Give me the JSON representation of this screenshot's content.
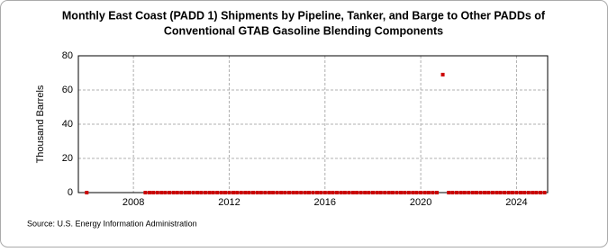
{
  "chart_data": {
    "type": "scatter",
    "title": [
      "Monthly East Coast (PADD 1) Shipments by Pipeline, Tanker, and Barge to Other PADDs of",
      "Conventional GTAB Gasoline Blending Components"
    ],
    "y_label": "Thousand Barrels",
    "source": "Source: U.S. Energy Information Administration",
    "xlim": [
      2005.7,
      2025.3
    ],
    "xticks": [
      2008,
      2012,
      2016,
      2020,
      2024
    ],
    "ylim": [
      0,
      80
    ],
    "yticks": [
      0,
      20,
      40,
      60,
      80
    ],
    "grid": true,
    "series": [
      {
        "color": "#cc0000",
        "x": [
          2006.05,
          2008.5,
          2008.67,
          2008.83,
          2009.0,
          2009.17,
          2009.33,
          2009.5,
          2009.67,
          2009.83,
          2010.0,
          2010.17,
          2010.33,
          2010.5,
          2010.67,
          2010.83,
          2011.0,
          2011.17,
          2011.33,
          2011.5,
          2011.67,
          2011.83,
          2012.0,
          2012.17,
          2012.33,
          2012.5,
          2012.67,
          2012.83,
          2013.0,
          2013.17,
          2013.33,
          2013.5,
          2013.67,
          2013.83,
          2014.0,
          2014.17,
          2014.33,
          2014.5,
          2014.67,
          2014.83,
          2015.0,
          2015.17,
          2015.33,
          2015.5,
          2015.67,
          2015.83,
          2016.0,
          2016.17,
          2016.33,
          2016.5,
          2016.67,
          2016.83,
          2017.0,
          2017.17,
          2017.33,
          2017.5,
          2017.67,
          2017.83,
          2018.0,
          2018.17,
          2018.33,
          2018.5,
          2018.67,
          2018.83,
          2019.0,
          2019.17,
          2019.33,
          2019.5,
          2019.67,
          2019.83,
          2020.0,
          2020.17,
          2020.33,
          2020.5,
          2020.67,
          2020.92,
          2021.17,
          2021.33,
          2021.5,
          2021.67,
          2021.83,
          2022.0,
          2022.17,
          2022.33,
          2022.5,
          2022.67,
          2022.83,
          2023.0,
          2023.17,
          2023.33,
          2023.5,
          2023.67,
          2023.83,
          2024.0,
          2024.17,
          2024.33,
          2024.5,
          2024.67,
          2024.83,
          2025.0,
          2025.17
        ],
        "values": [
          0,
          0,
          0,
          0,
          0,
          0,
          0,
          0,
          0,
          0,
          0,
          0,
          0,
          0,
          0,
          0,
          0,
          0,
          0,
          0,
          0,
          0,
          0,
          0,
          0,
          0,
          0,
          0,
          0,
          0,
          0,
          0,
          0,
          0,
          0,
          0,
          0,
          0,
          0,
          0,
          0,
          0,
          0,
          0,
          0,
          0,
          0,
          0,
          0,
          0,
          0,
          0,
          0,
          0,
          0,
          0,
          0,
          0,
          0,
          0,
          0,
          0,
          0,
          0,
          0,
          0,
          0,
          0,
          0,
          0,
          0,
          0,
          0,
          0,
          0,
          69,
          0,
          0,
          0,
          0,
          0,
          0,
          0,
          0,
          0,
          0,
          0,
          0,
          0,
          0,
          0,
          0,
          0,
          0,
          0,
          0,
          0,
          0,
          0,
          0,
          0
        ]
      }
    ]
  }
}
